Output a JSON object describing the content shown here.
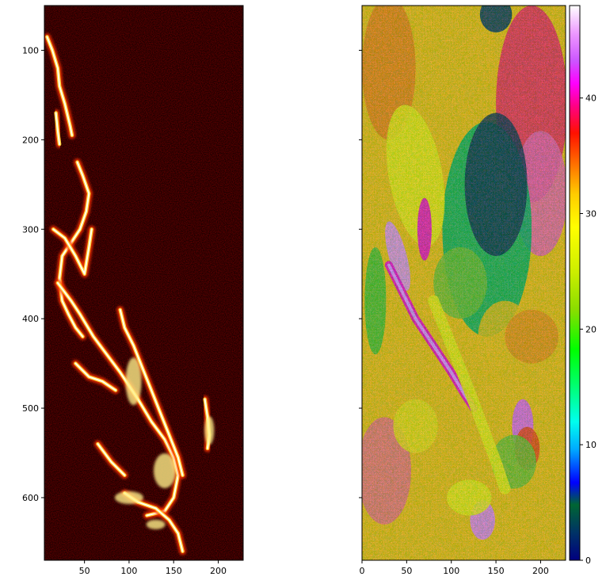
{
  "chart_data": [
    {
      "type": "heatmap",
      "title": "",
      "xlabel": "",
      "ylabel": "",
      "colormap": "hot",
      "xlim": [
        5,
        228
      ],
      "ylim": [
        670,
        50
      ],
      "xticks": [
        50,
        100,
        150,
        200
      ],
      "yticks": [
        100,
        200,
        300,
        400,
        500,
        600
      ],
      "bright_features": [
        {
          "name": "upper filament",
          "x_range": [
            5,
            40
          ],
          "y_range": [
            80,
            210
          ]
        },
        {
          "name": "middle loop",
          "x_range": [
            10,
            80
          ],
          "y_range": [
            215,
            470
          ]
        },
        {
          "name": "lower bright region",
          "x_range": [
            70,
            170
          ],
          "y_range": [
            380,
            660
          ]
        },
        {
          "name": "right knot",
          "x_range": [
            180,
            200
          ],
          "y_range": [
            485,
            600
          ]
        }
      ]
    },
    {
      "type": "heatmap",
      "title": "",
      "xlabel": "",
      "ylabel": "",
      "colormap": "gist_ncar",
      "xlim": [
        0,
        228
      ],
      "ylim": [
        670,
        50
      ],
      "xticks": [
        0,
        50,
        100,
        150,
        200
      ],
      "colorbar": {
        "min": 0,
        "max": 48,
        "ticks": [
          0,
          10,
          20,
          30,
          40
        ]
      }
    }
  ],
  "colors": {
    "hot_background": "#1a0000",
    "hot_mid": "#ff3300",
    "hot_peak": "#fffff0"
  }
}
